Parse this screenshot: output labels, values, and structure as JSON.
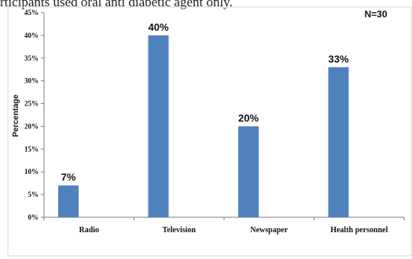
{
  "top_text": "rticipants used oral anti diabetic agent only.",
  "chart_data": {
    "type": "bar",
    "categories": [
      "Radio",
      "Television",
      "Newspaper",
      "Health personnel"
    ],
    "values": [
      7,
      40,
      20,
      33
    ],
    "data_labels": [
      "7%",
      "40%",
      "20%",
      "33%"
    ],
    "ylabel": "Percentage",
    "ylim": [
      0,
      45
    ],
    "yticks": [
      "0%",
      "5%",
      "10%",
      "15%",
      "20%",
      "25%",
      "30%",
      "35%",
      "40%",
      "45%"
    ],
    "annotation": "N=30",
    "bar_color": "#4f81bd",
    "grid": false
  }
}
